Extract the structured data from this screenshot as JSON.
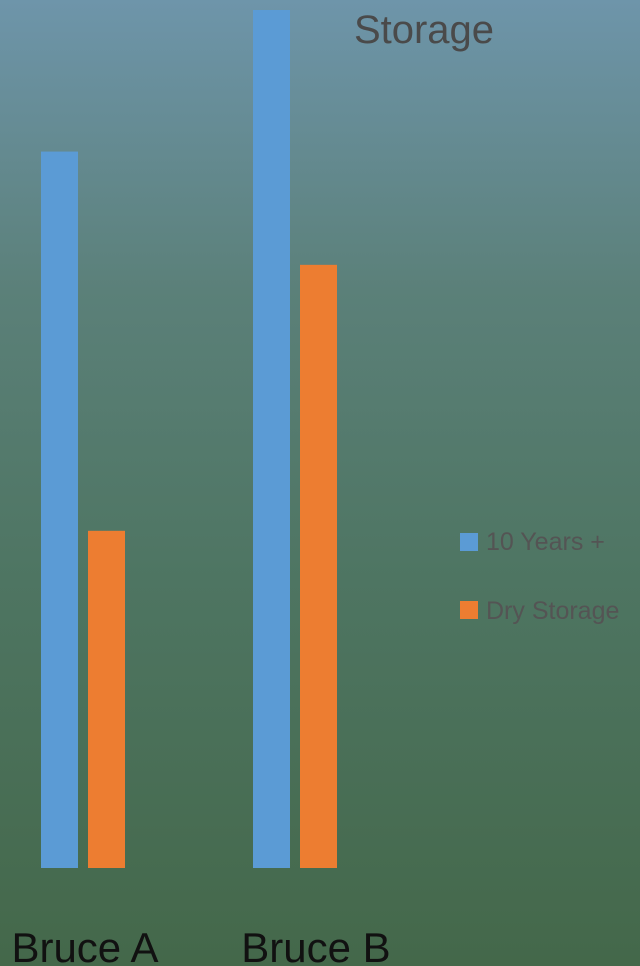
{
  "chart_data": {
    "type": "bar",
    "title": "Storage",
    "categories": [
      "Bruce A",
      "Bruce B"
    ],
    "series": [
      {
        "name": "10 Years +",
        "color": "#5b9bd5",
        "values": [
          83.5,
          100
        ]
      },
      {
        "name": "Dry Storage",
        "color": "#ed7d31",
        "values": [
          39.3,
          70.3
        ]
      }
    ],
    "ylim": [
      0,
      100
    ],
    "grid": false,
    "legend_position": "right",
    "title_color": "#4a4a4a",
    "category_label_color": "#111111",
    "legend_text_color": "#545454"
  }
}
